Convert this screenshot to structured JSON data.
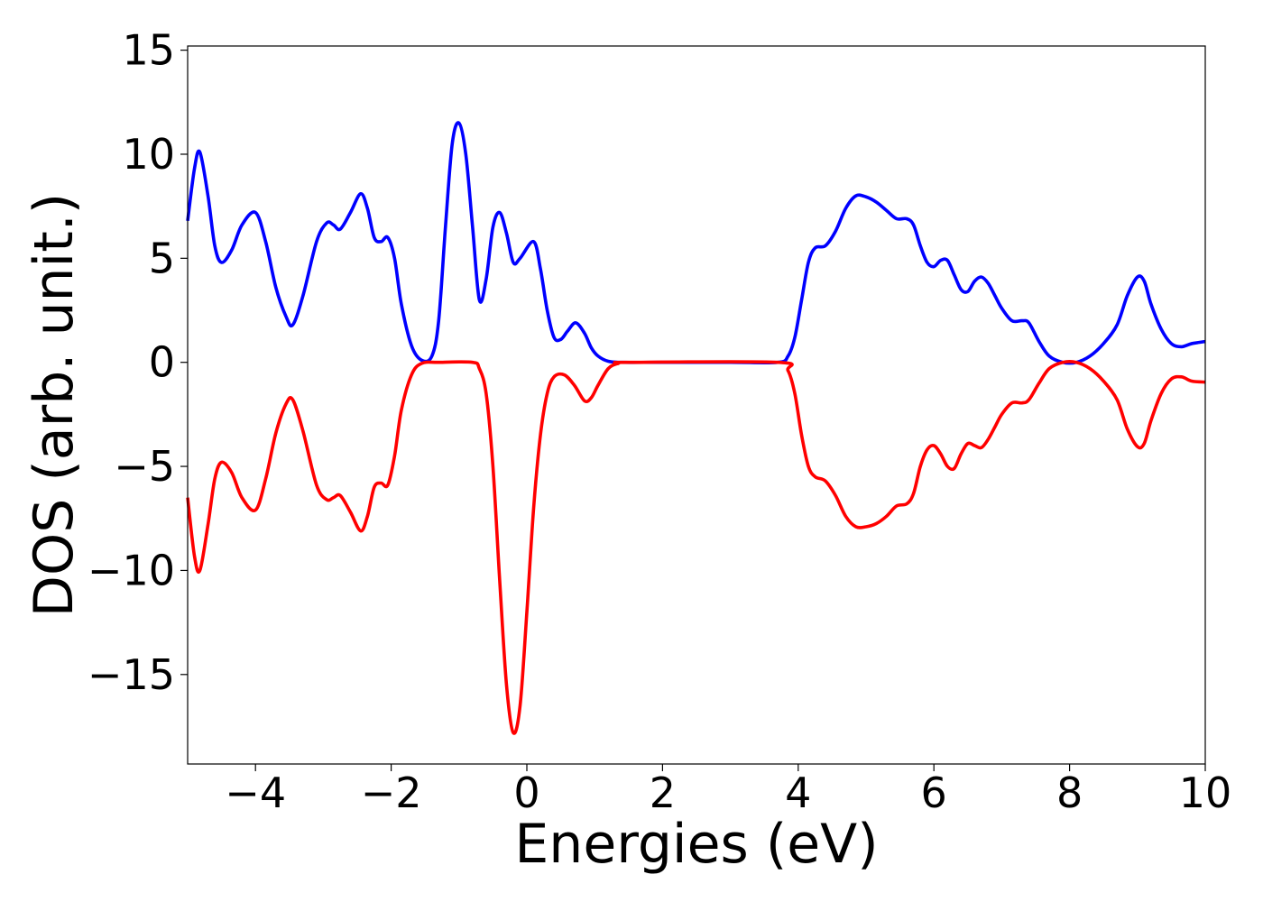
{
  "chart_data": {
    "type": "line",
    "title": "",
    "xlabel": "Energies (eV)",
    "ylabel": "DOS (arb. unit.)",
    "xlim": [
      -5,
      10
    ],
    "ylim": [
      -19.3,
      15.2
    ],
    "xticks": [
      -4,
      -2,
      0,
      2,
      4,
      6,
      8,
      10
    ],
    "xtick_labels": [
      "−4",
      "−2",
      "0",
      "2",
      "4",
      "6",
      "8",
      "10"
    ],
    "yticks": [
      -15,
      -10,
      -5,
      0,
      5,
      10,
      15
    ],
    "ytick_labels": [
      "−15",
      "−10",
      "−5",
      "0",
      "5",
      "10",
      "15"
    ],
    "grid": false,
    "legend": "none",
    "series": [
      {
        "color": "#0000ff",
        "points": [
          [
            -5.0,
            6.8
          ],
          [
            -4.9,
            9.3
          ],
          [
            -4.82,
            10.1
          ],
          [
            -4.7,
            8.0
          ],
          [
            -4.6,
            5.6
          ],
          [
            -4.5,
            4.8
          ],
          [
            -4.35,
            5.4
          ],
          [
            -4.2,
            6.6
          ],
          [
            -4.0,
            7.2
          ],
          [
            -3.85,
            5.8
          ],
          [
            -3.7,
            3.6
          ],
          [
            -3.55,
            2.2
          ],
          [
            -3.45,
            1.8
          ],
          [
            -3.3,
            3.2
          ],
          [
            -3.1,
            5.8
          ],
          [
            -2.95,
            6.7
          ],
          [
            -2.85,
            6.6
          ],
          [
            -2.75,
            6.4
          ],
          [
            -2.6,
            7.2
          ],
          [
            -2.45,
            8.1
          ],
          [
            -2.35,
            7.4
          ],
          [
            -2.25,
            6.0
          ],
          [
            -2.15,
            5.8
          ],
          [
            -2.05,
            6.0
          ],
          [
            -1.95,
            5.0
          ],
          [
            -1.85,
            2.8
          ],
          [
            -1.7,
            0.8
          ],
          [
            -1.55,
            0.1
          ],
          [
            -1.4,
            0.3
          ],
          [
            -1.3,
            2.0
          ],
          [
            -1.2,
            6.5
          ],
          [
            -1.1,
            10.5
          ],
          [
            -1.0,
            11.5
          ],
          [
            -0.9,
            10.0
          ],
          [
            -0.8,
            6.5
          ],
          [
            -0.7,
            3.0
          ],
          [
            -0.6,
            4.0
          ],
          [
            -0.5,
            6.5
          ],
          [
            -0.4,
            7.2
          ],
          [
            -0.3,
            6.2
          ],
          [
            -0.2,
            4.8
          ],
          [
            -0.1,
            5.0
          ],
          [
            0.1,
            5.8
          ],
          [
            0.2,
            4.5
          ],
          [
            0.3,
            2.5
          ],
          [
            0.4,
            1.2
          ],
          [
            0.5,
            1.1
          ],
          [
            0.6,
            1.5
          ],
          [
            0.72,
            1.9
          ],
          [
            0.85,
            1.4
          ],
          [
            0.95,
            0.7
          ],
          [
            1.05,
            0.3
          ],
          [
            1.2,
            0.05
          ],
          [
            1.4,
            0.0
          ],
          [
            2.0,
            0.0
          ],
          [
            3.0,
            0.0
          ],
          [
            3.7,
            0.0
          ],
          [
            3.85,
            0.3
          ],
          [
            3.95,
            1.2
          ],
          [
            4.05,
            3.0
          ],
          [
            4.15,
            4.8
          ],
          [
            4.25,
            5.5
          ],
          [
            4.4,
            5.6
          ],
          [
            4.55,
            6.3
          ],
          [
            4.7,
            7.4
          ],
          [
            4.85,
            8.0
          ],
          [
            5.0,
            7.95
          ],
          [
            5.15,
            7.7
          ],
          [
            5.3,
            7.3
          ],
          [
            5.45,
            6.9
          ],
          [
            5.6,
            6.9
          ],
          [
            5.7,
            6.6
          ],
          [
            5.8,
            5.6
          ],
          [
            5.9,
            4.8
          ],
          [
            6.0,
            4.6
          ],
          [
            6.1,
            4.9
          ],
          [
            6.2,
            4.9
          ],
          [
            6.3,
            4.2
          ],
          [
            6.4,
            3.5
          ],
          [
            6.5,
            3.4
          ],
          [
            6.6,
            3.9
          ],
          [
            6.7,
            4.1
          ],
          [
            6.8,
            3.8
          ],
          [
            6.9,
            3.2
          ],
          [
            7.0,
            2.6
          ],
          [
            7.15,
            2.0
          ],
          [
            7.3,
            2.0
          ],
          [
            7.4,
            1.9
          ],
          [
            7.55,
            1.0
          ],
          [
            7.7,
            0.3
          ],
          [
            7.9,
            0.0
          ],
          [
            8.1,
            0.0
          ],
          [
            8.3,
            0.3
          ],
          [
            8.5,
            0.9
          ],
          [
            8.7,
            1.8
          ],
          [
            8.85,
            3.2
          ],
          [
            9.0,
            4.1
          ],
          [
            9.1,
            3.9
          ],
          [
            9.2,
            2.8
          ],
          [
            9.35,
            1.6
          ],
          [
            9.5,
            0.9
          ],
          [
            9.65,
            0.75
          ],
          [
            9.8,
            0.9
          ],
          [
            10.0,
            1.0
          ]
        ]
      },
      {
        "color": "#ff0000",
        "points": [
          [
            -5.0,
            -6.5
          ],
          [
            -4.9,
            -9.3
          ],
          [
            -4.82,
            -10.0
          ],
          [
            -4.7,
            -7.8
          ],
          [
            -4.6,
            -5.6
          ],
          [
            -4.5,
            -4.8
          ],
          [
            -4.35,
            -5.3
          ],
          [
            -4.2,
            -6.5
          ],
          [
            -4.0,
            -7.1
          ],
          [
            -3.85,
            -5.6
          ],
          [
            -3.7,
            -3.4
          ],
          [
            -3.55,
            -2.0
          ],
          [
            -3.45,
            -1.8
          ],
          [
            -3.3,
            -3.3
          ],
          [
            -3.1,
            -5.9
          ],
          [
            -2.95,
            -6.6
          ],
          [
            -2.85,
            -6.5
          ],
          [
            -2.75,
            -6.4
          ],
          [
            -2.6,
            -7.2
          ],
          [
            -2.45,
            -8.1
          ],
          [
            -2.35,
            -7.4
          ],
          [
            -2.25,
            -6.0
          ],
          [
            -2.15,
            -5.8
          ],
          [
            -2.05,
            -5.9
          ],
          [
            -1.95,
            -4.5
          ],
          [
            -1.85,
            -2.3
          ],
          [
            -1.7,
            -0.6
          ],
          [
            -1.55,
            -0.05
          ],
          [
            -1.3,
            0.0
          ],
          [
            -0.8,
            0.0
          ],
          [
            -0.7,
            -0.3
          ],
          [
            -0.6,
            -1.5
          ],
          [
            -0.5,
            -5.0
          ],
          [
            -0.4,
            -10.5
          ],
          [
            -0.3,
            -15.5
          ],
          [
            -0.2,
            -17.8
          ],
          [
            -0.1,
            -16.5
          ],
          [
            0.0,
            -12.0
          ],
          [
            0.1,
            -7.0
          ],
          [
            0.2,
            -3.5
          ],
          [
            0.3,
            -1.5
          ],
          [
            0.4,
            -0.7
          ],
          [
            0.55,
            -0.6
          ],
          [
            0.7,
            -1.1
          ],
          [
            0.85,
            -1.85
          ],
          [
            0.95,
            -1.7
          ],
          [
            1.05,
            -1.1
          ],
          [
            1.2,
            -0.3
          ],
          [
            1.35,
            -0.05
          ],
          [
            1.5,
            0.0
          ],
          [
            3.7,
            0.0
          ],
          [
            3.85,
            -0.4
          ],
          [
            3.95,
            -1.5
          ],
          [
            4.05,
            -3.5
          ],
          [
            4.15,
            -5.0
          ],
          [
            4.25,
            -5.5
          ],
          [
            4.4,
            -5.7
          ],
          [
            4.55,
            -6.4
          ],
          [
            4.7,
            -7.4
          ],
          [
            4.85,
            -7.9
          ],
          [
            5.0,
            -7.9
          ],
          [
            5.15,
            -7.75
          ],
          [
            5.3,
            -7.4
          ],
          [
            5.45,
            -6.9
          ],
          [
            5.6,
            -6.8
          ],
          [
            5.7,
            -6.3
          ],
          [
            5.8,
            -5.0
          ],
          [
            5.9,
            -4.2
          ],
          [
            6.0,
            -4.0
          ],
          [
            6.1,
            -4.4
          ],
          [
            6.2,
            -5.0
          ],
          [
            6.3,
            -5.1
          ],
          [
            6.4,
            -4.4
          ],
          [
            6.5,
            -3.9
          ],
          [
            6.6,
            -4.0
          ],
          [
            6.7,
            -4.1
          ],
          [
            6.8,
            -3.7
          ],
          [
            6.9,
            -3.1
          ],
          [
            7.0,
            -2.5
          ],
          [
            7.15,
            -1.95
          ],
          [
            7.3,
            -1.95
          ],
          [
            7.4,
            -1.8
          ],
          [
            7.55,
            -1.0
          ],
          [
            7.7,
            -0.3
          ],
          [
            7.9,
            0.0
          ],
          [
            8.1,
            0.0
          ],
          [
            8.3,
            -0.3
          ],
          [
            8.5,
            -0.9
          ],
          [
            8.7,
            -1.8
          ],
          [
            8.85,
            -3.2
          ],
          [
            9.0,
            -4.05
          ],
          [
            9.1,
            -3.9
          ],
          [
            9.2,
            -2.8
          ],
          [
            9.35,
            -1.5
          ],
          [
            9.5,
            -0.8
          ],
          [
            9.65,
            -0.7
          ],
          [
            9.8,
            -0.9
          ],
          [
            10.0,
            -0.95
          ]
        ]
      }
    ]
  }
}
